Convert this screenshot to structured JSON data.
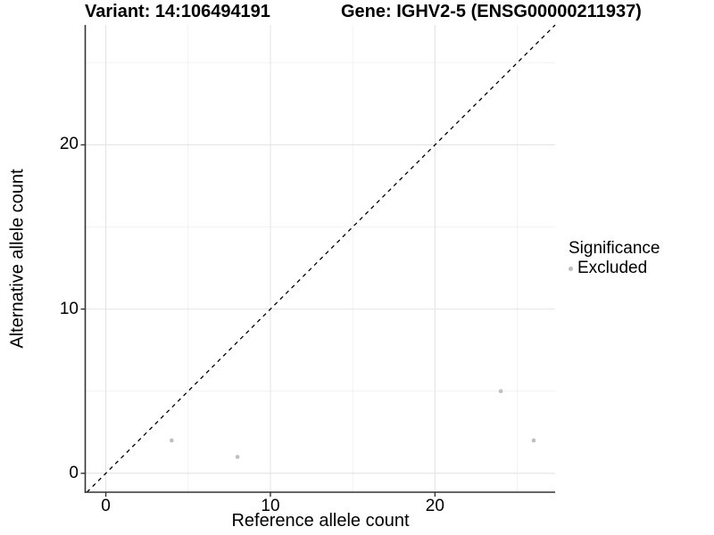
{
  "titles": {
    "left": "Variant: 14:106494191",
    "right": "Gene: IGHV2-5 (ENSG00000211937)"
  },
  "chart_data": {
    "type": "scatter",
    "title_left": "Variant: 14:106494191",
    "title_right": "Gene: IGHV2-5 (ENSG00000211937)",
    "xlabel": "Reference allele count",
    "ylabel": "Alternative allele count",
    "x_ticks": [
      0,
      10,
      20
    ],
    "y_ticks": [
      0,
      10,
      20
    ],
    "x_minor_ticks": [
      5,
      15,
      25
    ],
    "y_minor_ticks": [
      5,
      15,
      25
    ],
    "xlim": [
      -1.25,
      27.3
    ],
    "ylim": [
      -1.15,
      27.3
    ],
    "grid": true,
    "series": [
      {
        "name": "Excluded",
        "color": "#bebebe",
        "points": [
          [
            4,
            2
          ],
          [
            8,
            1
          ],
          [
            24,
            5
          ],
          [
            26,
            2
          ]
        ]
      }
    ],
    "reference_line": {
      "kind": "identity",
      "style": "dashed",
      "color": "#000000"
    },
    "legend": {
      "title": "Significance",
      "position": "right",
      "items": [
        {
          "label": "Excluded",
          "color": "#bebebe"
        }
      ]
    },
    "colors": {
      "background": "#ffffff",
      "grid_major": "#e4e4e4",
      "grid_minor": "#f0f0f0",
      "axis_line": "#333333",
      "text": "#000000",
      "point": "#bebebe"
    }
  }
}
